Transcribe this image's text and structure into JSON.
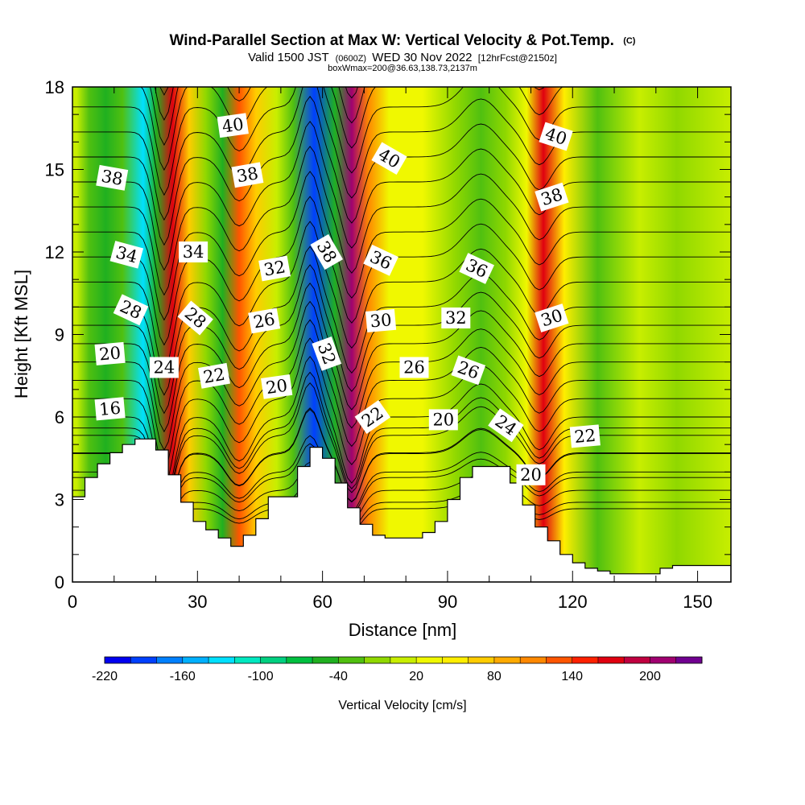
{
  "chart_data": {
    "type": "heatmap",
    "title": {
      "main": "Wind-Parallel Section at Max W: Vertical Velocity & Pot.Temp.",
      "copyright": "(C)",
      "line2_a": "Valid 1500 JST",
      "line2_b": "(0600Z)",
      "line2_c": "WED 30 Nov 2022",
      "line2_d": "[12hrFcst@2150z]",
      "line3": "boxWmax=200@36.63,138.73,2137m"
    },
    "xlabel": "Distance [nm]",
    "ylabel": "Height [Kft MSL]",
    "xlim": [
      0,
      158
    ],
    "ylim": [
      0,
      18
    ],
    "x_ticks": [
      0,
      30,
      60,
      90,
      120,
      150
    ],
    "y_ticks": [
      0,
      3,
      6,
      9,
      12,
      15,
      18
    ],
    "colorbar": {
      "label": "Vertical Velocity [cm/s]",
      "levels": [
        -220,
        -200,
        -180,
        -160,
        -140,
        -120,
        -100,
        -80,
        -60,
        -40,
        -20,
        0,
        20,
        40,
        60,
        80,
        100,
        120,
        140,
        160,
        180,
        200,
        220
      ],
      "tick_labels": [
        "-220",
        "-160",
        "-100",
        "-40",
        "20",
        "80",
        "140",
        "200"
      ],
      "colors": [
        "#0000f0",
        "#0040ff",
        "#0080ff",
        "#00b0ff",
        "#00e0ff",
        "#00e8c0",
        "#00d080",
        "#00c040",
        "#20b020",
        "#50c010",
        "#90d800",
        "#c8ee00",
        "#f0f800",
        "#ffee00",
        "#ffcc00",
        "#ffaa00",
        "#ff8800",
        "#ff5500",
        "#ff2000",
        "#e00010",
        "#c00040",
        "#a00070",
        "#700090"
      ]
    },
    "vertical_velocity_bands": [
      {
        "x": 1,
        "w": 10
      },
      {
        "x": 4,
        "w": -30
      },
      {
        "x": 8,
        "w": -60
      },
      {
        "x": 12,
        "w": -45
      },
      {
        "x": 17,
        "w": -140
      },
      {
        "x": 20,
        "w": -60
      },
      {
        "x": 24,
        "w": 160
      },
      {
        "x": 28,
        "w": 60
      },
      {
        "x": 32,
        "w": -20
      },
      {
        "x": 36,
        "w": -60
      },
      {
        "x": 40,
        "w": 120
      },
      {
        "x": 44,
        "w": 60
      },
      {
        "x": 49,
        "w": 10
      },
      {
        "x": 53,
        "w": -40
      },
      {
        "x": 58,
        "w": -200
      },
      {
        "x": 63,
        "w": -60
      },
      {
        "x": 67,
        "w": 200
      },
      {
        "x": 71,
        "w": 100
      },
      {
        "x": 76,
        "w": 20
      },
      {
        "x": 84,
        "w": 30
      },
      {
        "x": 92,
        "w": -10
      },
      {
        "x": 98,
        "w": -40
      },
      {
        "x": 104,
        "w": -20
      },
      {
        "x": 109,
        "w": 20
      },
      {
        "x": 113,
        "w": 160
      },
      {
        "x": 118,
        "w": 40
      },
      {
        "x": 126,
        "w": -30
      },
      {
        "x": 136,
        "w": 0
      },
      {
        "x": 145,
        "w": -20
      },
      {
        "x": 158,
        "w": 10
      }
    ],
    "terrain": {
      "x": [
        0,
        3,
        3,
        6,
        6,
        9,
        9,
        12,
        12,
        15,
        15,
        20,
        20,
        23,
        23,
        26,
        26,
        29,
        29,
        32,
        32,
        35,
        35,
        38,
        38,
        41,
        41,
        44,
        44,
        47,
        47,
        54,
        54,
        57,
        57,
        60,
        60,
        63,
        63,
        66,
        66,
        69,
        69,
        72,
        72,
        75,
        75,
        78,
        78,
        84,
        84,
        87,
        87,
        90,
        90,
        93,
        93,
        96,
        96,
        105,
        105,
        108,
        108,
        111,
        111,
        114,
        114,
        117,
        117,
        120,
        120,
        123,
        123,
        126,
        126,
        129,
        129,
        132,
        132,
        135,
        135,
        141,
        141,
        144,
        144,
        147,
        147,
        150,
        150,
        153,
        153,
        158
      ],
      "y": [
        3.1,
        3.1,
        3.8,
        3.8,
        4.3,
        4.3,
        4.7,
        4.7,
        5.0,
        5.0,
        5.2,
        5.2,
        4.8,
        4.8,
        3.9,
        3.9,
        2.9,
        2.9,
        2.2,
        2.2,
        1.9,
        1.9,
        1.6,
        1.6,
        1.3,
        1.3,
        1.7,
        1.7,
        2.3,
        2.3,
        3.1,
        3.1,
        4.2,
        4.2,
        4.9,
        4.9,
        4.5,
        4.5,
        3.6,
        3.6,
        2.7,
        2.7,
        2.1,
        2.1,
        1.7,
        1.7,
        1.6,
        1.6,
        1.6,
        1.6,
        1.8,
        1.8,
        2.2,
        2.2,
        3.0,
        3.0,
        3.8,
        3.8,
        4.2,
        4.2,
        3.6,
        3.6,
        2.8,
        2.8,
        2.0,
        2.0,
        1.5,
        1.5,
        1.0,
        1.0,
        0.7,
        0.7,
        0.5,
        0.5,
        0.4,
        0.4,
        0.3,
        0.3,
        0.3,
        0.3,
        0.3,
        0.3,
        0.5,
        0.5,
        0.6,
        0.6,
        0.6,
        0.6,
        0.6,
        0.6,
        0.6,
        0.6
      ]
    },
    "contour_labels": [
      {
        "text": "40",
        "x": 38.5,
        "y": 16.6,
        "angle": -8
      },
      {
        "text": "38",
        "x": 9.5,
        "y": 14.7,
        "angle": 10
      },
      {
        "text": "38",
        "x": 42,
        "y": 14.8,
        "angle": -10
      },
      {
        "text": "40",
        "x": 76,
        "y": 15.4,
        "angle": 30
      },
      {
        "text": "40",
        "x": 116,
        "y": 16.2,
        "angle": 18
      },
      {
        "text": "38",
        "x": 115,
        "y": 14.0,
        "angle": -18
      },
      {
        "text": "34",
        "x": 13,
        "y": 11.9,
        "angle": 15
      },
      {
        "text": "34",
        "x": 29,
        "y": 12.0,
        "angle": 0
      },
      {
        "text": "32",
        "x": 48.5,
        "y": 11.4,
        "angle": -10
      },
      {
        "text": "38",
        "x": 61,
        "y": 12.0,
        "angle": 60
      },
      {
        "text": "36",
        "x": 74,
        "y": 11.7,
        "angle": 25
      },
      {
        "text": "36",
        "x": 97,
        "y": 11.4,
        "angle": 25
      },
      {
        "text": "28",
        "x": 14,
        "y": 9.9,
        "angle": 25
      },
      {
        "text": "28",
        "x": 29.5,
        "y": 9.6,
        "angle": 40
      },
      {
        "text": "26",
        "x": 46,
        "y": 9.5,
        "angle": -10
      },
      {
        "text": "30",
        "x": 74,
        "y": 9.5,
        "angle": -5
      },
      {
        "text": "32",
        "x": 92,
        "y": 9.6,
        "angle": 0
      },
      {
        "text": "30",
        "x": 115,
        "y": 9.6,
        "angle": -18
      },
      {
        "text": "20",
        "x": 9,
        "y": 8.3,
        "angle": -5
      },
      {
        "text": "32",
        "x": 61,
        "y": 8.3,
        "angle": 70
      },
      {
        "text": "24",
        "x": 22,
        "y": 7.8,
        "angle": 0
      },
      {
        "text": "22",
        "x": 34,
        "y": 7.5,
        "angle": -10
      },
      {
        "text": "26",
        "x": 82,
        "y": 7.8,
        "angle": 0
      },
      {
        "text": "26",
        "x": 95,
        "y": 7.7,
        "angle": 20
      },
      {
        "text": "20",
        "x": 49,
        "y": 7.1,
        "angle": -8
      },
      {
        "text": "16",
        "x": 9,
        "y": 6.3,
        "angle": -5
      },
      {
        "text": "22",
        "x": 72,
        "y": 6.0,
        "angle": -35
      },
      {
        "text": "20",
        "x": 89,
        "y": 5.9,
        "angle": 0
      },
      {
        "text": "24",
        "x": 104,
        "y": 5.7,
        "angle": 35
      },
      {
        "text": "22",
        "x": 123,
        "y": 5.3,
        "angle": -5
      },
      {
        "text": "20",
        "x": 110,
        "y": 3.9,
        "angle": 0
      }
    ],
    "grid": false
  }
}
